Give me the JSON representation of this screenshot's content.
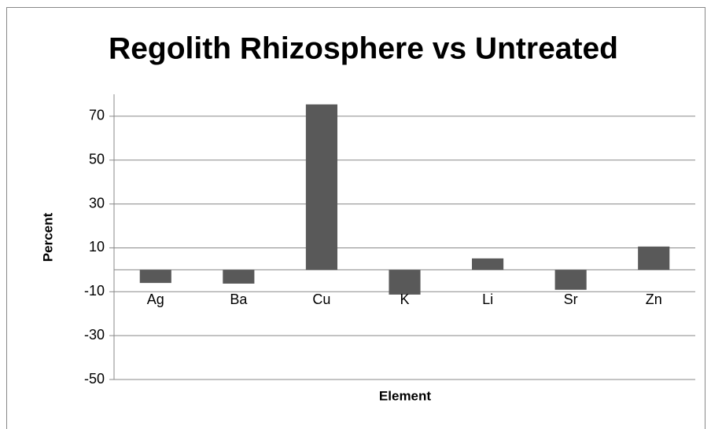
{
  "chart_data": {
    "type": "bar",
    "title": "Regolith Rhizosphere vs Untreated",
    "x_label": "Element",
    "y_label": "Percent",
    "categories": [
      "Ag",
      "Ba",
      "Cu",
      "K",
      "Li",
      "Sr",
      "Zn"
    ],
    "values": [
      -6,
      -6.3,
      75.4,
      -11.3,
      5.2,
      -9.1,
      10.6
    ],
    "color": "#595959",
    "ylim": [
      -50,
      80
    ],
    "yticks": [
      -50,
      -30,
      -10,
      10,
      30,
      50,
      70
    ],
    "grid": true
  }
}
